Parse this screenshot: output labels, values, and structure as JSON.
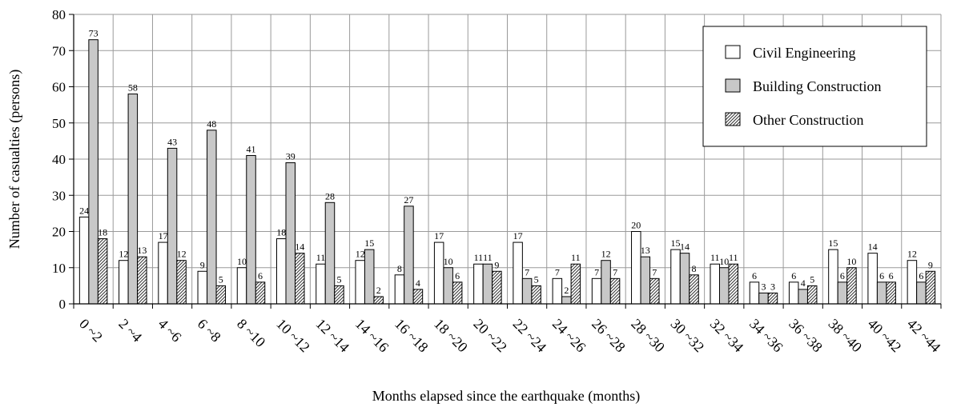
{
  "chart_data": {
    "type": "bar",
    "xlabel": "Months elapsed since the earthquake (months)",
    "ylabel": "Number of casualties (persons)",
    "ylim": [
      0,
      80
    ],
    "yticks": [
      0,
      10,
      20,
      30,
      40,
      50,
      60,
      70,
      80
    ],
    "grid": "horizontal and vertical",
    "legend_position": "top-right",
    "categories": [
      "0 ~2",
      "2 ~4",
      "4 ~6",
      "6 ~8",
      "8 ~10",
      "10 ~12",
      "12 ~14",
      "14 ~16",
      "16 ~18",
      "18 ~20",
      "20 ~22",
      "22 ~24",
      "24 ~26",
      "26 ~28",
      "28 ~30",
      "30 ~32",
      "32 ~34",
      "34 ~36",
      "36 ~38",
      "38 ~40",
      "40 ~42",
      "42 ~44"
    ],
    "series": [
      {
        "name": "Civil Engineering",
        "fill": "white",
        "values": [
          24,
          12,
          17,
          9,
          10,
          18,
          11,
          12,
          8,
          17,
          11,
          17,
          7,
          7,
          20,
          15,
          11,
          6,
          6,
          15,
          14,
          12
        ]
      },
      {
        "name": "Building Construction",
        "fill": "#c8c8c8",
        "values": [
          73,
          58,
          43,
          48,
          41,
          39,
          28,
          15,
          27,
          10,
          11,
          7,
          2,
          12,
          13,
          14,
          10,
          3,
          4,
          6,
          6,
          6
        ]
      },
      {
        "name": "Other Construction",
        "fill": "hatched",
        "values": [
          18,
          13,
          12,
          5,
          6,
          14,
          5,
          2,
          4,
          6,
          9,
          5,
          11,
          7,
          7,
          8,
          11,
          3,
          5,
          10,
          6,
          9
        ]
      }
    ]
  }
}
